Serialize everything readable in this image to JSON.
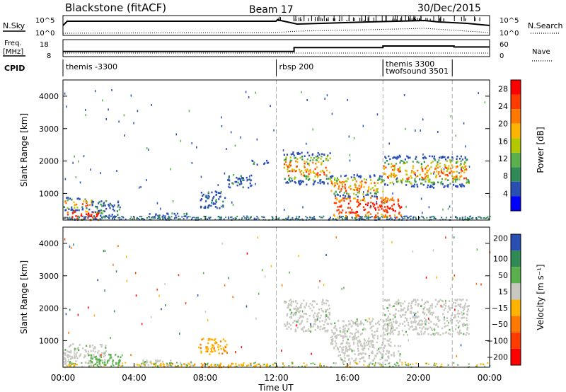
{
  "header": {
    "station": "Blackstone (fitACF)",
    "beam": "Beam 17",
    "date": "30/Dec/2015"
  },
  "summary_labels": {
    "nsky": "N.Sky",
    "nsearch": "N.Search",
    "freq_line1": "Freq.",
    "freq_line2": "[MHz]",
    "nave": "Nave",
    "cpid": "CPID",
    "ax1_left_top": "10^5",
    "ax1_left_bot": "10^0",
    "ax1_right_top": "10^5",
    "ax1_right_bot": "10^0",
    "ax2_left_top": "18",
    "ax2_left_bot": "8",
    "ax2_right_top": "60",
    "ax2_right_bot": "0"
  },
  "cpid_segments": [
    {
      "start_hour": 0.0,
      "label": "themis -3300"
    },
    {
      "start_hour": 12.0,
      "label": "rbsp 200"
    },
    {
      "start_hour": 18.0,
      "label": "themis 3300"
    },
    {
      "start_hour": 18.0,
      "label": "twofsound 3501"
    },
    {
      "start_hour": 21.9,
      "label": ""
    }
  ],
  "freq_steps": [
    {
      "start": 0,
      "end": 13,
      "mhz": 10.6
    },
    {
      "start": 13,
      "end": 18,
      "mhz": 13.4
    },
    {
      "start": 18,
      "end": 22,
      "mhz": 14.5
    },
    {
      "start": 22,
      "end": 24,
      "mhz": 13.8
    }
  ],
  "chart_data": [
    {
      "type": "heatmap",
      "name": "power",
      "xlabel": "",
      "ylabel": "Slant Range [km]",
      "xlim": [
        0,
        24
      ],
      "ylim": [
        180,
        4500
      ],
      "yticks": [
        "1000",
        "2000",
        "3000",
        "4000"
      ],
      "colorbar_label": "Power [dB]",
      "colorbar_ticks": [
        "4",
        "8",
        "12",
        "16",
        "20",
        "24",
        "28"
      ],
      "colorbar_range": [
        0,
        30
      ],
      "colors": [
        "#0000ff",
        "#2a4fb3",
        "#2f8a56",
        "#5ab04d",
        "#b4c800",
        "#ffb400",
        "#ff7800",
        "#ff3c00",
        "#ff0000"
      ],
      "regions": [
        {
          "t0": 0.0,
          "t1": 2.0,
          "r0": 200,
          "r1": 500,
          "level": "high"
        },
        {
          "t0": 0.0,
          "t1": 1.6,
          "r0": 500,
          "r1": 900,
          "level": "mid"
        },
        {
          "t0": 1.6,
          "t1": 3.2,
          "r0": 250,
          "r1": 800,
          "level": "low"
        },
        {
          "t0": 4.5,
          "t1": 7.0,
          "r0": 300,
          "r1": 420,
          "level": "low"
        },
        {
          "t0": 7.7,
          "t1": 9.2,
          "r0": 560,
          "r1": 1100,
          "level": "low"
        },
        {
          "t0": 9.2,
          "t1": 10.6,
          "r0": 1200,
          "r1": 1600,
          "level": "low"
        },
        {
          "t0": 10.6,
          "t1": 11.6,
          "r0": 1900,
          "r1": 2050,
          "level": "low"
        },
        {
          "t0": 12.4,
          "t1": 15.0,
          "r0": 1300,
          "r1": 2300,
          "level": "mid"
        },
        {
          "t0": 15.0,
          "t1": 18.0,
          "r0": 900,
          "r1": 1600,
          "level": "mid"
        },
        {
          "t0": 15.2,
          "t1": 19.0,
          "r0": 280,
          "r1": 900,
          "level": "high"
        },
        {
          "t0": 18.0,
          "t1": 22.8,
          "r0": 1200,
          "r1": 2200,
          "level": "mid"
        }
      ]
    },
    {
      "type": "heatmap",
      "name": "velocity",
      "xlabel": "Time UT",
      "ylabel": "Slant Range [km]",
      "xlim": [
        0,
        24
      ],
      "ylim": [
        180,
        4500
      ],
      "xticks": [
        "00:00",
        "04:00",
        "08:00",
        "12:00",
        "16:00",
        "20:00",
        "00:00"
      ],
      "yticks": [
        "1000",
        "2000",
        "3000",
        "4000"
      ],
      "colorbar_label": "Velocity [m s⁻¹]",
      "colorbar_ticks": [
        "200",
        "100",
        "50",
        "15",
        "−15",
        "−50",
        "−100",
        "−200"
      ],
      "colors": [
        "#2a4fb3",
        "#2f8a56",
        "#5ab04d",
        "#c8c8c0",
        "#ffb400",
        "#ff7800",
        "#ff3c00",
        "#ff0000"
      ],
      "regions": [
        {
          "t0": 0.0,
          "t1": 2.4,
          "r0": 200,
          "r1": 950,
          "cat": "ground"
        },
        {
          "t0": 1.4,
          "t1": 3.2,
          "r0": 250,
          "r1": 600,
          "cat": "slow_pos"
        },
        {
          "t0": 4.4,
          "t1": 7.2,
          "r0": 250,
          "r1": 420,
          "cat": "ground"
        },
        {
          "t0": 7.6,
          "t1": 9.2,
          "r0": 600,
          "r1": 1100,
          "cat": "neg"
        },
        {
          "t0": 5.0,
          "t1": 12.0,
          "r0": 200,
          "r1": 320,
          "cat": "neg"
        },
        {
          "t0": 12.4,
          "t1": 15.0,
          "r0": 1300,
          "r1": 2300,
          "cat": "ground"
        },
        {
          "t0": 15.0,
          "t1": 18.5,
          "r0": 900,
          "r1": 1700,
          "cat": "ground"
        },
        {
          "t0": 15.2,
          "t1": 19.0,
          "r0": 300,
          "r1": 900,
          "cat": "ground"
        },
        {
          "t0": 18.0,
          "t1": 22.8,
          "r0": 1200,
          "r1": 2300,
          "cat": "ground"
        }
      ]
    }
  ]
}
